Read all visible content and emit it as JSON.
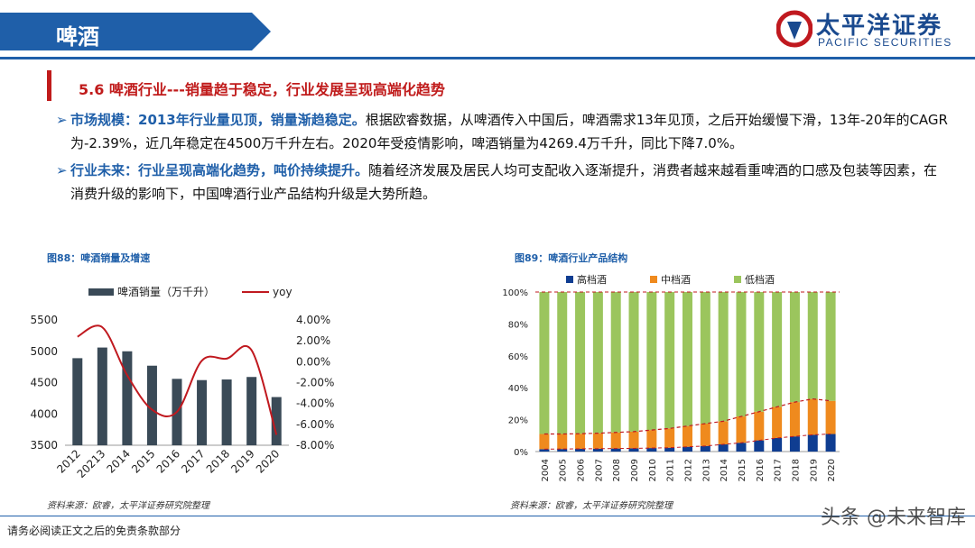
{
  "header": {
    "tab_title": "啤酒",
    "logo_cn": "太平洋证券",
    "logo_en": "PACIFIC SECURITIES",
    "brand_color": "#1f5fa9"
  },
  "section": {
    "title": "5.6  啤酒行业---销量趋于稳定，行业发展呈现高端化趋势"
  },
  "bullets": [
    {
      "highlight": "市场规模：2013年行业量见顶，销量渐趋稳定。",
      "text": "根据欧睿数据，从啤酒传入中国后，啤酒需求13年见顶，之后开始缓慢下滑，13年-20年的CAGR为-2.39%，近几年稳定在4500万千升左右。2020年受疫情影响，啤酒销量为4269.4万千升，同比下降7.0%。"
    },
    {
      "highlight": "行业未来：行业呈现高端化趋势，吨价持续提升。",
      "text": "随着经济发展及居民人均可支配收入逐渐提升，消费者越来越看重啤酒的口感及包装等因素，在消费升级的影响下，中国啤酒行业产品结构升级是大势所趋。"
    }
  ],
  "fig88": {
    "title": "图88：啤酒销量及增速",
    "source": "资料来源：欧睿，太平洋证券研究院整理"
  },
  "fig89": {
    "title": "图89：啤酒行业产品结构",
    "source": "资料来源：欧睿，太平洋证券研究院整理"
  },
  "footer": {
    "disclaimer": "请务必阅读正文之后的免责条款部分",
    "watermark": "头条 @未来智库"
  },
  "chart_data": [
    {
      "type": "bar",
      "categories": [
        "2012",
        "20213",
        "2014",
        "2015",
        "2016",
        "2017",
        "2018",
        "2019",
        "2020"
      ],
      "series": [
        {
          "name": "啤酒销量（万千升）",
          "type": "bar",
          "axis": "left",
          "color": "#3a4a57",
          "values": [
            4890,
            5060,
            5000,
            4770,
            4560,
            4540,
            4550,
            4590,
            4269.4
          ]
        },
        {
          "name": "yoy",
          "type": "line",
          "axis": "right",
          "color": "#c0191f",
          "values": [
            2.4,
            3.3,
            -1.3,
            -4.6,
            -4.8,
            0.1,
            0.3,
            1.1,
            -7.0
          ]
        }
      ],
      "ylim_left": [
        3500,
        5500
      ],
      "yticks_left": [
        "3500",
        "4000",
        "4500",
        "5000",
        "5500"
      ],
      "ylim_right": [
        -8,
        4
      ],
      "yticks_right": [
        "-8.00%",
        "-6.00%",
        "-4.00%",
        "-2.00%",
        "0.00%",
        "2.00%",
        "4.00%"
      ],
      "legend_position": "top",
      "grid": false
    },
    {
      "type": "bar",
      "stacked": true,
      "categories": [
        "2004",
        "2005",
        "2006",
        "2007",
        "2008",
        "2009",
        "2010",
        "2011",
        "2012",
        "2013",
        "2014",
        "2015",
        "2016",
        "2017",
        "2018",
        "2019",
        "2020"
      ],
      "series": [
        {
          "name": "高档酒",
          "color": "#0f3d91",
          "values": [
            1.5,
            1.6,
            1.7,
            1.8,
            1.9,
            2.0,
            2.2,
            2.4,
            3.0,
            3.5,
            4.5,
            5.5,
            7.0,
            8.5,
            9.5,
            10.5,
            11.0
          ]
        },
        {
          "name": "中档酒",
          "color": "#ef8a1e",
          "values": [
            9.5,
            9.4,
            9.5,
            9.7,
            10.1,
            10.5,
            11.3,
            12.1,
            13.0,
            14.0,
            14.5,
            16.5,
            18.0,
            19.5,
            21.5,
            22.5,
            20.8
          ]
        },
        {
          "name": "低档酒",
          "color": "#9bc55d",
          "values": [
            89.0,
            89.0,
            88.8,
            88.5,
            88.0,
            87.5,
            86.5,
            85.5,
            84.0,
            82.5,
            81.0,
            78.0,
            75.0,
            72.0,
            69.0,
            67.0,
            68.2
          ]
        }
      ],
      "ylim": [
        0,
        100
      ],
      "yticks": [
        "0%",
        "20%",
        "40%",
        "60%",
        "80%",
        "100%"
      ],
      "legend_position": "top",
      "grid": false
    }
  ]
}
